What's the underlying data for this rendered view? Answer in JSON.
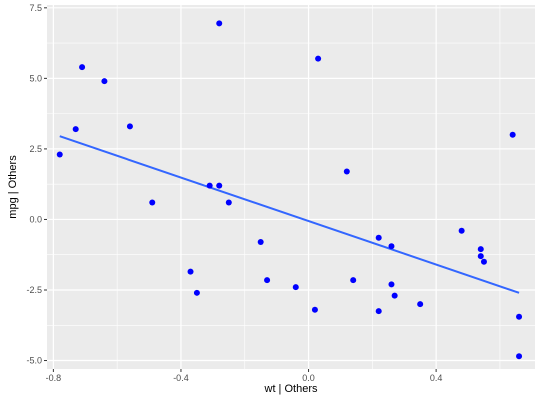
{
  "chart_data": {
    "type": "scatter",
    "title": "",
    "xlabel": "wt  | Others",
    "ylabel": "mpg  | Others",
    "xlim": [
      -0.82,
      0.71
    ],
    "ylim": [
      -5.3,
      7.6
    ],
    "x_ticks": [
      -0.8,
      -0.4,
      0.0,
      0.4
    ],
    "x_tick_labels": [
      "-0.8",
      "-0.4",
      "0.0",
      "0.4"
    ],
    "y_ticks": [
      -5.0,
      -2.5,
      0.0,
      2.5,
      5.0,
      7.5
    ],
    "y_tick_labels": [
      "-5.0",
      "-2.5",
      "0.0",
      "2.5",
      "5.0",
      "7.5"
    ],
    "grid": true,
    "points": {
      "x": [
        -0.78,
        -0.73,
        -0.71,
        -0.64,
        -0.56,
        -0.49,
        -0.37,
        -0.35,
        -0.31,
        -0.28,
        -0.28,
        -0.25,
        -0.15,
        -0.13,
        -0.04,
        0.02,
        0.03,
        0.12,
        0.14,
        0.22,
        0.22,
        0.26,
        0.26,
        0.27,
        0.35,
        0.48,
        0.54,
        0.54,
        0.55,
        0.64,
        0.66,
        0.66
      ],
      "y": [
        2.3,
        3.2,
        5.4,
        4.9,
        3.3,
        0.6,
        -1.85,
        -2.6,
        1.2,
        1.2,
        6.95,
        0.6,
        -0.8,
        -2.15,
        -2.4,
        -3.2,
        5.7,
        1.7,
        -2.15,
        -0.65,
        -3.25,
        -0.95,
        -2.3,
        -2.7,
        -3.0,
        -0.4,
        -1.3,
        -1.05,
        -1.5,
        3.0,
        -3.45,
        -4.85
      ],
      "color": "#0000FF"
    },
    "fit_line": {
      "x": [
        -0.78,
        0.66
      ],
      "y": [
        2.95,
        -2.6
      ],
      "color": "#3366FF"
    },
    "colors": {
      "panel_background": "#EBEBEB",
      "grid_major": "#FFFFFF",
      "tick_mark": "#333333"
    }
  }
}
